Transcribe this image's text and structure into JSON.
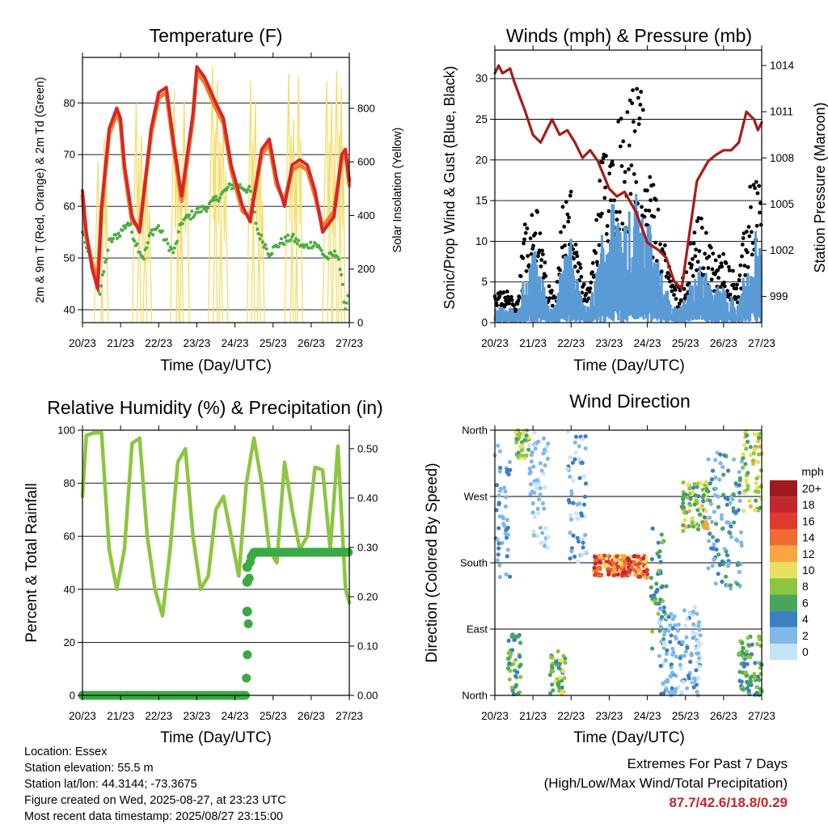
{
  "time_ticks": [
    "20/23",
    "21/23",
    "22/23",
    "23/23",
    "24/23",
    "25/23",
    "26/23",
    "27/23"
  ],
  "time_axis_label": "Time (Day/UTC)",
  "colors": {
    "temp_2m": "#d62728",
    "temp_9m": "#f07f2a",
    "dewpoint": "#4cae44",
    "solar": "#f5dd6a",
    "wind_gust": "#000000",
    "wind_sonic": "#5b9bd5",
    "pressure": "#a51c1c",
    "rh": "#8dc63f",
    "precip": "#3aaa44"
  },
  "chart_data": [
    {
      "id": "temperature",
      "type": "line",
      "title": "Temperature (F)",
      "xlabel": "Time (Day/UTC)",
      "ylabel": "2m & 9m T (Red, Orange) & 2m Td (Green)",
      "y2label": "Solar Insolation (Yellow)",
      "xlim": [
        0,
        7
      ],
      "ylim": [
        37.5,
        88.8
      ],
      "y_ticks": [
        40,
        50,
        60,
        70,
        80
      ],
      "y2lim": [
        0,
        990
      ],
      "y2_ticks": [
        0,
        200,
        400,
        600,
        800
      ],
      "grid": "horizontal",
      "series": [
        {
          "axis": "left",
          "color_key": "temp_2m",
          "x": [
            0,
            0.1,
            0.25,
            0.4,
            0.5,
            0.7,
            0.9,
            1.0,
            1.1,
            1.3,
            1.5,
            1.8,
            2.0,
            2.2,
            2.4,
            2.6,
            2.9,
            3.0,
            3.2,
            3.5,
            3.7,
            3.9,
            4.2,
            4.4,
            4.7,
            4.9,
            5.1,
            5.3,
            5.5,
            5.7,
            5.9,
            6.1,
            6.3,
            6.6,
            6.8,
            6.9,
            7.0
          ],
          "y": [
            63,
            55,
            48,
            44,
            60,
            75,
            79,
            77,
            68,
            58,
            55,
            75,
            82,
            83,
            72,
            62,
            78,
            87,
            85,
            80,
            77,
            68,
            60,
            57,
            71,
            73,
            65,
            60,
            68,
            69,
            68,
            63,
            55,
            58,
            70,
            71,
            65
          ]
        },
        {
          "axis": "left",
          "color_key": "temp_9m",
          "x": [
            0,
            0.1,
            0.25,
            0.4,
            0.5,
            0.7,
            0.9,
            1.0,
            1.1,
            1.3,
            1.5,
            1.8,
            2.0,
            2.2,
            2.4,
            2.6,
            2.9,
            3.0,
            3.2,
            3.5,
            3.7,
            3.9,
            4.2,
            4.4,
            4.7,
            4.9,
            5.1,
            5.3,
            5.5,
            5.7,
            5.9,
            6.1,
            6.3,
            6.6,
            6.8,
            6.9,
            7.0
          ],
          "y": [
            62,
            54,
            49,
            46,
            59,
            74,
            78,
            76,
            67,
            57,
            56,
            74,
            81,
            82,
            71,
            61,
            77,
            86,
            84,
            79,
            76,
            67,
            59,
            58,
            70,
            72,
            64,
            61,
            67,
            68,
            67,
            62,
            56,
            59,
            69,
            70,
            64
          ]
        },
        {
          "axis": "left",
          "color_key": "dewpoint",
          "x": [
            0,
            0.2,
            0.45,
            0.7,
            1.0,
            1.2,
            1.4,
            1.6,
            1.8,
            2.0,
            2.2,
            2.4,
            2.6,
            2.8,
            3.0,
            3.3,
            3.6,
            3.9,
            4.1,
            4.4,
            4.6,
            4.9,
            5.2,
            5.5,
            5.8,
            6.1,
            6.4,
            6.7,
            6.9,
            7.0
          ],
          "y": [
            55,
            50,
            43,
            53,
            55,
            57,
            53,
            50,
            55,
            56,
            53,
            51,
            57,
            58,
            59,
            60,
            62,
            64,
            64,
            63,
            55,
            51,
            53,
            54,
            52,
            53,
            50,
            51,
            40,
            45
          ]
        },
        {
          "axis": "right",
          "color_key": "solar",
          "label": "daily peaks",
          "x": [
            0.42,
            0.58,
            1.42,
            1.56,
            1.7,
            2.42,
            2.55,
            2.68,
            3.42,
            3.55,
            3.7,
            4.42,
            4.55,
            4.68,
            5.42,
            5.55,
            5.68,
            6.42,
            6.55,
            6.68,
            6.8
          ],
          "y": [
            600,
            690,
            820,
            700,
            560,
            870,
            640,
            830,
            960,
            900,
            750,
            900,
            820,
            600,
            930,
            760,
            920,
            900,
            820,
            940,
            880
          ]
        }
      ]
    },
    {
      "id": "winds",
      "type": "scatter",
      "title": "Winds (mph) & Pressure (mb)",
      "xlabel": "Time (Day/UTC)",
      "ylabel": "Sonic/Prop Wind & Gust (Blue, Black)",
      "y2label": "Station Pressure (Maroon)",
      "xlim": [
        0,
        7
      ],
      "ylim": [
        0,
        33.5
      ],
      "y_ticks": [
        0,
        5,
        10,
        15,
        20,
        25,
        30
      ],
      "y2lim": [
        997.3,
        1015.0
      ],
      "y2_ticks": [
        999,
        1002,
        1005,
        1008,
        1011,
        1014
      ],
      "grid": "horizontal",
      "wind_envelope": {
        "x": [
          0,
          0.3,
          0.6,
          0.8,
          1.0,
          1.2,
          1.4,
          1.6,
          1.8,
          2.0,
          2.2,
          2.4,
          2.6,
          2.8,
          3.0,
          3.2,
          3.4,
          3.6,
          3.8,
          4.0,
          4.2,
          4.4,
          4.6,
          4.8,
          5.0,
          5.2,
          5.4,
          5.6,
          5.8,
          6.0,
          6.2,
          6.4,
          6.6,
          6.8,
          7.0
        ],
        "gust": [
          3,
          4,
          2,
          12,
          15,
          10,
          4,
          4,
          14,
          15,
          7,
          3,
          8,
          18,
          22,
          24,
          23,
          25,
          27,
          20,
          14,
          10,
          6,
          4,
          6,
          10,
          12,
          9,
          7,
          8,
          6,
          5,
          12,
          18,
          15
        ],
        "sonic": [
          1.5,
          2,
          1,
          6,
          9,
          6,
          2,
          2,
          8,
          9,
          4,
          1.5,
          4,
          10,
          13,
          14,
          13,
          14,
          15,
          12,
          8,
          5,
          3,
          1.5,
          3,
          5,
          7,
          5,
          4,
          4,
          3,
          2,
          7,
          10,
          9
        ]
      },
      "series": [
        {
          "axis": "right",
          "color_key": "pressure",
          "name": "Station Pressure",
          "x": [
            0,
            0.1,
            0.2,
            0.4,
            0.5,
            0.8,
            1.0,
            1.2,
            1.5,
            1.7,
            1.9,
            2.1,
            2.3,
            2.5,
            2.7,
            3.0,
            3.2,
            3.4,
            3.7,
            4.0,
            4.3,
            4.5,
            4.7,
            4.9,
            5.1,
            5.3,
            5.6,
            5.8,
            6.0,
            6.2,
            6.4,
            6.6,
            6.8,
            6.9,
            7.0
          ],
          "y": [
            1013.5,
            1014.0,
            1013.5,
            1013.8,
            1013.0,
            1011.0,
            1009.5,
            1009.0,
            1010.5,
            1009.5,
            1009.8,
            1009.0,
            1008.0,
            1008.5,
            1007.8,
            1006.0,
            1005.5,
            1005.8,
            1004.5,
            1002.5,
            1002.0,
            1001.5,
            1000.0,
            999.5,
            1003.0,
            1006.5,
            1007.8,
            1008.2,
            1008.5,
            1008.5,
            1009.0,
            1011.0,
            1010.5,
            1009.8,
            1010.3
          ]
        }
      ]
    },
    {
      "id": "humidity",
      "type": "line",
      "title": "Relative Humidity (%) & Precipitation (in)",
      "xlabel": "Time (Day/UTC)",
      "ylabel": "Percent & Total Rainfall",
      "xlim": [
        0,
        7
      ],
      "ylim": [
        0,
        100
      ],
      "y_ticks": [
        0,
        20,
        40,
        60,
        80,
        100
      ],
      "y2lim": [
        0,
        0.5375
      ],
      "y2_ticks": [
        0,
        0.1,
        0.2,
        0.3,
        0.4,
        0.5
      ],
      "y2_tick_labels": [
        "0.00",
        "0.10",
        "0.20",
        "0.30",
        "0.40",
        "0.50"
      ],
      "grid": "horizontal",
      "series": [
        {
          "axis": "left",
          "color_key": "rh",
          "x": [
            0,
            0.1,
            0.3,
            0.5,
            0.7,
            0.9,
            1.1,
            1.3,
            1.5,
            1.7,
            1.9,
            2.1,
            2.3,
            2.5,
            2.7,
            2.9,
            3.1,
            3.3,
            3.5,
            3.7,
            3.9,
            4.1,
            4.3,
            4.5,
            4.7,
            4.9,
            5.1,
            5.3,
            5.5,
            5.7,
            5.9,
            6.1,
            6.3,
            6.5,
            6.7,
            6.9,
            7.0
          ],
          "y": [
            75,
            98,
            99,
            99,
            55,
            40,
            55,
            95,
            97,
            60,
            40,
            30,
            55,
            88,
            93,
            60,
            40,
            45,
            70,
            75,
            60,
            45,
            80,
            97,
            80,
            55,
            50,
            88,
            70,
            55,
            60,
            86,
            85,
            55,
            94,
            40,
            35
          ]
        },
        {
          "axis": "right",
          "color_key": "precip",
          "x": [
            0,
            4.28,
            4.32,
            4.36,
            4.38,
            4.42,
            4.5,
            5.0,
            6.0,
            7.0
          ],
          "y": [
            0,
            0,
            0.07,
            0.17,
            0.26,
            0.28,
            0.29,
            0.29,
            0.29,
            0.29
          ]
        }
      ]
    },
    {
      "id": "wind_direction",
      "type": "scatter",
      "title": "Wind Direction",
      "xlabel": "Time (Day/UTC)",
      "ylabel": "Direction (Colored By Speed)",
      "xlim": [
        0,
        7
      ],
      "ylim": [
        0,
        360
      ],
      "y_ticks": [
        0,
        90,
        180,
        270,
        360
      ],
      "y_tick_labels": [
        "North",
        "East",
        "South",
        "West",
        "North"
      ],
      "grid": "horizontal",
      "colorbar": {
        "title": "mph",
        "labels": [
          "20+",
          "18",
          "16",
          "14",
          "12",
          "10",
          "8",
          "6",
          "4",
          "2",
          "0"
        ],
        "colors": [
          "#9b1b1e",
          "#c1272d",
          "#e03a30",
          "#f26a30",
          "#f9a640",
          "#e8e060",
          "#8cc63f",
          "#4aa55c",
          "#3c7fc2",
          "#80b8e6",
          "#c6e4f8"
        ]
      },
      "clusters": [
        {
          "x": [
            0,
            0.4
          ],
          "y": [
            160,
            340
          ],
          "speed": [
            1,
            4
          ]
        },
        {
          "x": [
            0.55,
            0.9
          ],
          "y": [
            320,
            360
          ],
          "speed": [
            6,
            10
          ]
        },
        {
          "x": [
            0.35,
            0.7
          ],
          "y": [
            0,
            85
          ],
          "speed": [
            3,
            9
          ]
        },
        {
          "x": [
            0.9,
            1.4
          ],
          "y": [
            200,
            360
          ],
          "speed": [
            0,
            3
          ]
        },
        {
          "x": [
            1.45,
            1.85
          ],
          "y": [
            0,
            60
          ],
          "speed": [
            4,
            10
          ]
        },
        {
          "x": [
            1.9,
            2.4
          ],
          "y": [
            180,
            360
          ],
          "speed": [
            0,
            5
          ]
        },
        {
          "x": [
            2.6,
            4.0
          ],
          "y": [
            160,
            190
          ],
          "speed": [
            9,
            18
          ]
        },
        {
          "x": [
            4.1,
            4.5
          ],
          "y": [
            60,
            230
          ],
          "speed": [
            3,
            8
          ]
        },
        {
          "x": [
            4.3,
            5.4
          ],
          "y": [
            0,
            120
          ],
          "speed": [
            0,
            4
          ]
        },
        {
          "x": [
            4.9,
            5.6
          ],
          "y": [
            220,
            290
          ],
          "speed": [
            4,
            12
          ]
        },
        {
          "x": [
            5.6,
            6.5
          ],
          "y": [
            140,
            330
          ],
          "speed": [
            1,
            6
          ]
        },
        {
          "x": [
            6.5,
            7.0
          ],
          "y": [
            250,
            360
          ],
          "speed": [
            6,
            12
          ]
        },
        {
          "x": [
            6.4,
            7.0
          ],
          "y": [
            0,
            80
          ],
          "speed": [
            3,
            9
          ]
        }
      ]
    }
  ],
  "info": {
    "location": "Location: Essex",
    "elevation": "Station elevation: 55.5 m",
    "latlon": "Station lat/lon: 44.3144; -73.3675",
    "created": "Figure created on Wed, 2025-08-27, at 23:23 UTC",
    "recent": "Most recent data timestamp: 2025/08/27 23:15:00"
  },
  "extremes": {
    "title": "Extremes For Past 7 Days",
    "subtitle": "(High/Low/Max Wind/Total Precipitation)",
    "values": "87.7/42.6/18.8/0.29"
  }
}
